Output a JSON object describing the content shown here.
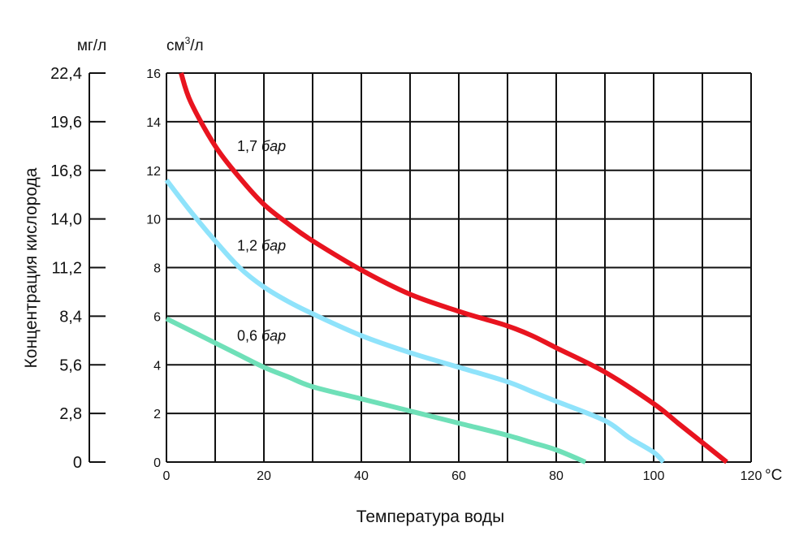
{
  "chart_data": {
    "type": "line",
    "xlabel": "Температура воды",
    "x_unit": "°C",
    "x_ticks": [
      "0",
      "20",
      "40",
      "60",
      "80",
      "100",
      "120"
    ],
    "xlim": [
      0,
      120
    ],
    "y_unit": "см³/л",
    "y_unit_base": "см",
    "y_unit_sup": "3",
    "y_unit_tail": "/л",
    "y_ticks": [
      "0",
      "2",
      "4",
      "6",
      "8",
      "10",
      "12",
      "14",
      "16"
    ],
    "ylim": [
      0,
      16
    ],
    "y2label": "Концентрация кислорода",
    "y2_unit": "мг/л",
    "y2_ticks": [
      "0",
      "2,8",
      "5,6",
      "8,4",
      "11,2",
      "14,0",
      "16,8",
      "19,6",
      "22,4"
    ],
    "y2lim": [
      0,
      22.4
    ],
    "grid": true,
    "series": [
      {
        "name": "1,7 бар",
        "label_num": "1,7",
        "label_unit": "бар",
        "color": "#e8141f",
        "x": [
          3,
          5,
          10,
          15,
          20,
          25,
          30,
          40,
          50,
          60,
          65,
          70,
          75,
          80,
          90,
          100,
          105,
          110,
          115
        ],
        "y": [
          16,
          14.8,
          13.0,
          11.7,
          10.6,
          9.8,
          9.1,
          7.9,
          6.9,
          6.2,
          5.9,
          5.6,
          5.2,
          4.7,
          3.7,
          2.4,
          1.6,
          0.8,
          0
        ]
      },
      {
        "name": "1,2 бар",
        "label_num": "1,2",
        "label_unit": "бар",
        "color": "#8fe3fb",
        "x": [
          0,
          5,
          10,
          15,
          20,
          25,
          30,
          40,
          50,
          60,
          70,
          75,
          80,
          90,
          95,
          100,
          102
        ],
        "y": [
          11.6,
          10.3,
          9.1,
          8.0,
          7.2,
          6.6,
          6.1,
          5.2,
          4.5,
          3.9,
          3.3,
          2.9,
          2.5,
          1.7,
          1.0,
          0.4,
          0
        ]
      },
      {
        "name": "0,6 бар",
        "label_num": "0,6",
        "label_unit": "бар",
        "color": "#6fe0b8",
        "x": [
          0,
          5,
          10,
          15,
          20,
          25,
          30,
          40,
          50,
          60,
          70,
          75,
          80,
          86
        ],
        "y": [
          5.9,
          5.4,
          4.9,
          4.4,
          3.9,
          3.5,
          3.1,
          2.6,
          2.1,
          1.6,
          1.1,
          0.8,
          0.5,
          0
        ]
      }
    ]
  }
}
